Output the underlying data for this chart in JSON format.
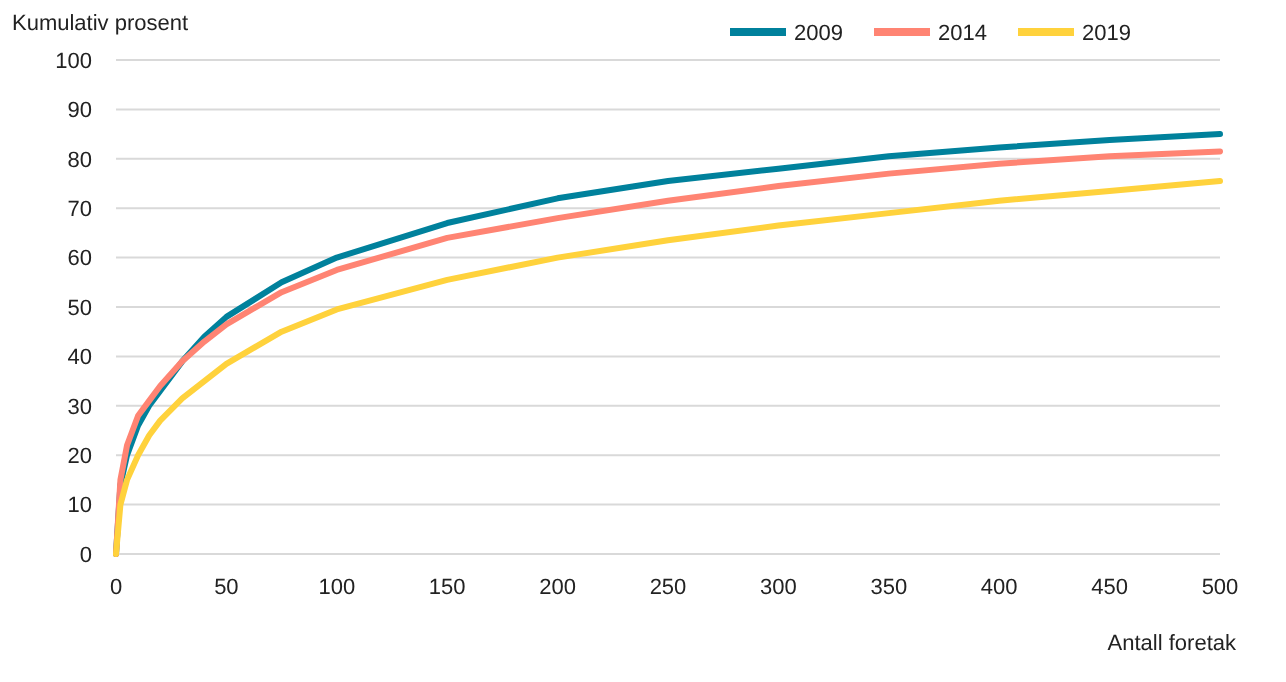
{
  "chart_data": {
    "type": "line",
    "xlabel": "Antall foretak",
    "ylabel": "Kumulativ prosent",
    "x": [
      0,
      2,
      5,
      10,
      15,
      20,
      30,
      40,
      50,
      75,
      100,
      150,
      200,
      250,
      300,
      350,
      400,
      450,
      500
    ],
    "series": [
      {
        "name": "2009",
        "color": "#00819c",
        "values": [
          0,
          14,
          20,
          26,
          30,
          33,
          39,
          44,
          48,
          55,
          60,
          67,
          72,
          75.5,
          78,
          80.5,
          82.3,
          83.8,
          85
        ]
      },
      {
        "name": "2014",
        "color": "#ff8473",
        "values": [
          0,
          15,
          22,
          28,
          31,
          34,
          39,
          43,
          46.5,
          53,
          57.5,
          64,
          68,
          71.5,
          74.5,
          77,
          79,
          80.5,
          81.5
        ]
      },
      {
        "name": "2019",
        "color": "#ffd23c",
        "values": [
          0,
          10,
          15,
          20,
          24,
          27,
          31.5,
          35,
          38.5,
          45,
          49.5,
          55.5,
          60,
          63.5,
          66.5,
          69,
          71.5,
          73.5,
          75.5
        ]
      }
    ],
    "xlim": [
      0,
      500
    ],
    "xticks": [
      0,
      50,
      100,
      150,
      200,
      250,
      300,
      350,
      400,
      450,
      500
    ],
    "ylim": [
      0,
      100
    ],
    "yticks": [
      0,
      10,
      20,
      30,
      40,
      50,
      60,
      70,
      80,
      90,
      100
    ],
    "grid": "y",
    "legend": "top right",
    "marker": "none",
    "line_style": "solid"
  }
}
